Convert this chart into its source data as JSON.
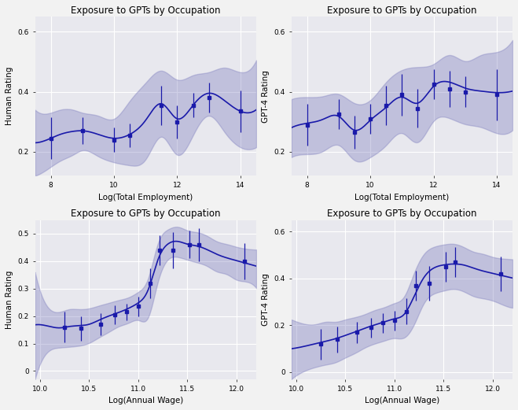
{
  "title": "Exposure to GPTs by Occupation",
  "fig_bg": "#f2f2f2",
  "plot_bg": "#e8e8ee",
  "line_color": "#1a1aaa",
  "fill_color": "#7777bb",
  "fill_alpha": 0.35,
  "panels": [
    {
      "xlabel": "Log(Total Employment)",
      "ylabel": "Human Rating",
      "xlim": [
        7.5,
        14.5
      ],
      "ylim": [
        0.12,
        0.65
      ],
      "yticks": [
        0.2,
        0.4,
        0.6
      ],
      "ytick_labels": [
        "0.2",
        "0.4",
        "0.6"
      ],
      "xticks": [
        8,
        10,
        12,
        14
      ],
      "points_x": [
        8.0,
        9.0,
        10.0,
        10.5,
        11.5,
        12.0,
        12.5,
        13.0,
        14.0
      ],
      "points_y": [
        0.245,
        0.27,
        0.24,
        0.255,
        0.355,
        0.3,
        0.355,
        0.38,
        0.335
      ],
      "points_err": [
        0.07,
        0.045,
        0.04,
        0.04,
        0.065,
        0.055,
        0.04,
        0.05,
        0.07
      ],
      "smooth_x": [
        7.5,
        8.0,
        8.3,
        8.7,
        9.0,
        9.5,
        10.0,
        10.5,
        11.0,
        11.5,
        12.0,
        12.5,
        13.0,
        13.5,
        14.0,
        14.5
      ],
      "smooth_y": [
        0.23,
        0.245,
        0.258,
        0.268,
        0.27,
        0.258,
        0.245,
        0.258,
        0.305,
        0.36,
        0.31,
        0.355,
        0.395,
        0.37,
        0.335,
        0.34
      ],
      "smooth_upper": [
        0.34,
        0.33,
        0.34,
        0.34,
        0.33,
        0.32,
        0.31,
        0.37,
        0.43,
        0.47,
        0.44,
        0.455,
        0.465,
        0.48,
        0.465,
        0.505
      ],
      "smooth_lower": [
        0.12,
        0.15,
        0.17,
        0.19,
        0.205,
        0.185,
        0.165,
        0.155,
        0.175,
        0.25,
        0.19,
        0.255,
        0.32,
        0.265,
        0.215,
        0.215
      ]
    },
    {
      "xlabel": "Log(Total Employment)",
      "ylabel": "GPT-4 Rating",
      "xlim": [
        7.5,
        14.5
      ],
      "ylim": [
        0.12,
        0.65
      ],
      "yticks": [
        0.2,
        0.4,
        0.6
      ],
      "ytick_labels": [
        "0.2",
        "0.4",
        "0.6"
      ],
      "xticks": [
        8,
        10,
        12,
        14
      ],
      "points_x": [
        8.0,
        9.0,
        9.5,
        10.0,
        10.5,
        11.0,
        11.5,
        12.0,
        12.5,
        13.0,
        14.0
      ],
      "points_y": [
        0.29,
        0.325,
        0.265,
        0.31,
        0.355,
        0.39,
        0.345,
        0.425,
        0.41,
        0.4,
        0.39
      ],
      "points_err": [
        0.07,
        0.05,
        0.055,
        0.05,
        0.065,
        0.07,
        0.065,
        0.05,
        0.06,
        0.05,
        0.085
      ],
      "smooth_x": [
        7.5,
        8.0,
        8.5,
        9.0,
        9.5,
        10.0,
        10.5,
        11.0,
        11.5,
        12.0,
        12.5,
        13.0,
        13.5,
        14.0,
        14.5
      ],
      "smooth_y": [
        0.28,
        0.295,
        0.308,
        0.318,
        0.272,
        0.305,
        0.348,
        0.382,
        0.362,
        0.418,
        0.432,
        0.412,
        0.402,
        0.397,
        0.402
      ],
      "smooth_upper": [
        0.375,
        0.382,
        0.385,
        0.392,
        0.362,
        0.372,
        0.432,
        0.472,
        0.482,
        0.492,
        0.522,
        0.502,
        0.522,
        0.532,
        0.572
      ],
      "smooth_lower": [
        0.182,
        0.192,
        0.202,
        0.222,
        0.172,
        0.182,
        0.222,
        0.262,
        0.232,
        0.302,
        0.312,
        0.292,
        0.282,
        0.262,
        0.272
      ]
    },
    {
      "xlabel": "Log(Annual Wage)",
      "ylabel": "Human Rating",
      "xlim": [
        9.95,
        12.2
      ],
      "ylim": [
        -0.03,
        0.55
      ],
      "yticks": [
        0.0,
        0.1,
        0.2,
        0.3,
        0.4,
        0.5
      ],
      "ytick_labels": [
        "0",
        "0.1",
        "0.2",
        "0.3",
        "0.4",
        "0.5"
      ],
      "xticks": [
        10.0,
        10.5,
        11.0,
        11.5,
        12.0
      ],
      "points_x": [
        10.25,
        10.42,
        10.62,
        10.76,
        10.88,
        11.0,
        11.12,
        11.22,
        11.35,
        11.52,
        11.62,
        12.08
      ],
      "points_y": [
        0.16,
        0.155,
        0.17,
        0.205,
        0.215,
        0.235,
        0.32,
        0.44,
        0.44,
        0.46,
        0.46,
        0.4
      ],
      "points_err": [
        0.055,
        0.045,
        0.04,
        0.035,
        0.03,
        0.035,
        0.055,
        0.055,
        0.065,
        0.05,
        0.06,
        0.065
      ],
      "smooth_x": [
        9.95,
        10.1,
        10.2,
        10.3,
        10.4,
        10.5,
        10.6,
        10.7,
        10.8,
        10.9,
        11.0,
        11.1,
        11.2,
        11.3,
        11.4,
        11.5,
        11.6,
        11.7,
        11.8,
        11.9,
        12.0,
        12.1,
        12.2
      ],
      "smooth_y": [
        0.168,
        0.162,
        0.157,
        0.162,
        0.165,
        0.17,
        0.185,
        0.2,
        0.213,
        0.228,
        0.248,
        0.295,
        0.405,
        0.462,
        0.472,
        0.462,
        0.455,
        0.442,
        0.425,
        0.412,
        0.402,
        0.392,
        0.382
      ],
      "smooth_upper": [
        0.36,
        0.225,
        0.215,
        0.225,
        0.225,
        0.228,
        0.238,
        0.248,
        0.258,
        0.268,
        0.288,
        0.338,
        0.465,
        0.515,
        0.525,
        0.512,
        0.505,
        0.492,
        0.472,
        0.462,
        0.452,
        0.445,
        0.442
      ],
      "smooth_lower": [
        -0.03,
        0.075,
        0.085,
        0.088,
        0.092,
        0.102,
        0.122,
        0.142,
        0.162,
        0.175,
        0.185,
        0.195,
        0.325,
        0.405,
        0.415,
        0.405,
        0.395,
        0.382,
        0.362,
        0.352,
        0.332,
        0.325,
        0.302
      ]
    },
    {
      "xlabel": "Log(Annual Wage)",
      "ylabel": "GPT-4 Rating",
      "xlim": [
        9.95,
        12.2
      ],
      "ylim": [
        -0.03,
        0.65
      ],
      "yticks": [
        0.0,
        0.2,
        0.4,
        0.6
      ],
      "ytick_labels": [
        "0",
        "0.2",
        "0.4",
        "0.6"
      ],
      "xticks": [
        10.0,
        10.5,
        11.0,
        11.5,
        12.0
      ],
      "points_x": [
        10.25,
        10.42,
        10.62,
        10.76,
        10.88,
        11.0,
        11.12,
        11.22,
        11.35,
        11.52,
        11.62,
        12.08
      ],
      "points_y": [
        0.12,
        0.14,
        0.17,
        0.19,
        0.21,
        0.22,
        0.26,
        0.37,
        0.38,
        0.45,
        0.47,
        0.42
      ],
      "points_err": [
        0.065,
        0.055,
        0.045,
        0.042,
        0.042,
        0.042,
        0.055,
        0.065,
        0.075,
        0.065,
        0.065,
        0.075
      ],
      "smooth_x": [
        9.95,
        10.1,
        10.2,
        10.3,
        10.4,
        10.5,
        10.6,
        10.7,
        10.8,
        10.9,
        11.0,
        11.1,
        11.2,
        11.3,
        11.4,
        11.5,
        11.6,
        11.7,
        11.8,
        11.9,
        12.0,
        12.1,
        12.2
      ],
      "smooth_y": [
        0.1,
        0.112,
        0.122,
        0.132,
        0.143,
        0.157,
        0.172,
        0.188,
        0.202,
        0.215,
        0.228,
        0.248,
        0.325,
        0.405,
        0.445,
        0.458,
        0.462,
        0.458,
        0.445,
        0.432,
        0.422,
        0.412,
        0.402
      ],
      "smooth_upper": [
        0.225,
        0.205,
        0.205,
        0.215,
        0.215,
        0.225,
        0.235,
        0.248,
        0.265,
        0.278,
        0.295,
        0.325,
        0.425,
        0.505,
        0.535,
        0.545,
        0.548,
        0.535,
        0.515,
        0.505,
        0.492,
        0.485,
        0.482
      ],
      "smooth_lower": [
        -0.03,
        0.008,
        0.022,
        0.032,
        0.042,
        0.062,
        0.082,
        0.105,
        0.122,
        0.135,
        0.145,
        0.148,
        0.205,
        0.295,
        0.335,
        0.348,
        0.355,
        0.345,
        0.325,
        0.315,
        0.305,
        0.288,
        0.275
      ]
    }
  ]
}
